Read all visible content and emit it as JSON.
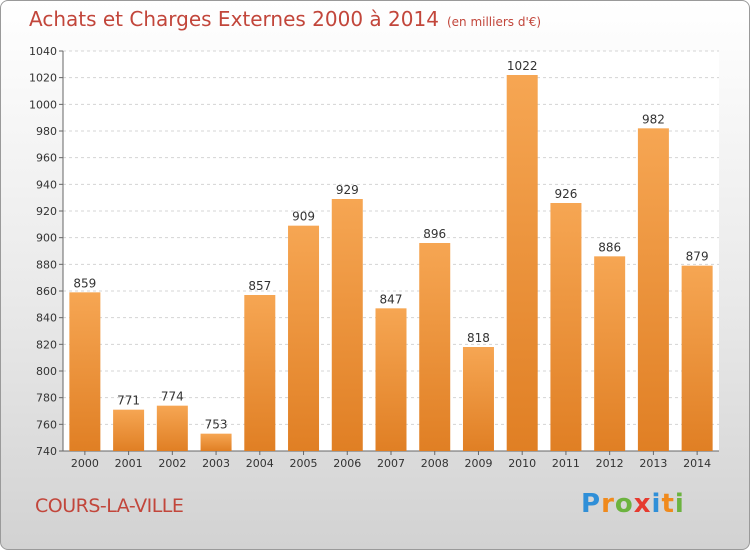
{
  "title": "Achats et Charges Externes 2000 à 2014",
  "unit_label": "(en milliers d'€)",
  "city": "COURS-LA-VILLE",
  "logo": {
    "letters": [
      "P",
      "r",
      "o",
      "x",
      "i",
      "t",
      "i"
    ],
    "colors": [
      "#2f8fd8",
      "#f08a1c",
      "#6cb33f",
      "#e63a2f",
      "#2f8fd8",
      "#f08a1c",
      "#6cb33f"
    ]
  },
  "colors": {
    "bar_light": "#f6a653",
    "bar_dark": "#e07f24",
    "title": "#c2463b",
    "grid": "#d4d4d4"
  },
  "chart_data": {
    "type": "bar",
    "categories": [
      "2000",
      "2001",
      "2002",
      "2003",
      "2004",
      "2005",
      "2006",
      "2007",
      "2008",
      "2009",
      "2010",
      "2011",
      "2012",
      "2013",
      "2014"
    ],
    "values": [
      859,
      771,
      774,
      753,
      857,
      909,
      929,
      847,
      896,
      818,
      1022,
      926,
      886,
      982,
      879
    ],
    "yticks": [
      740,
      760,
      780,
      800,
      820,
      840,
      860,
      880,
      900,
      920,
      940,
      960,
      980,
      1000,
      1020,
      1040
    ],
    "ylim": [
      740,
      1040
    ],
    "grid": true
  }
}
